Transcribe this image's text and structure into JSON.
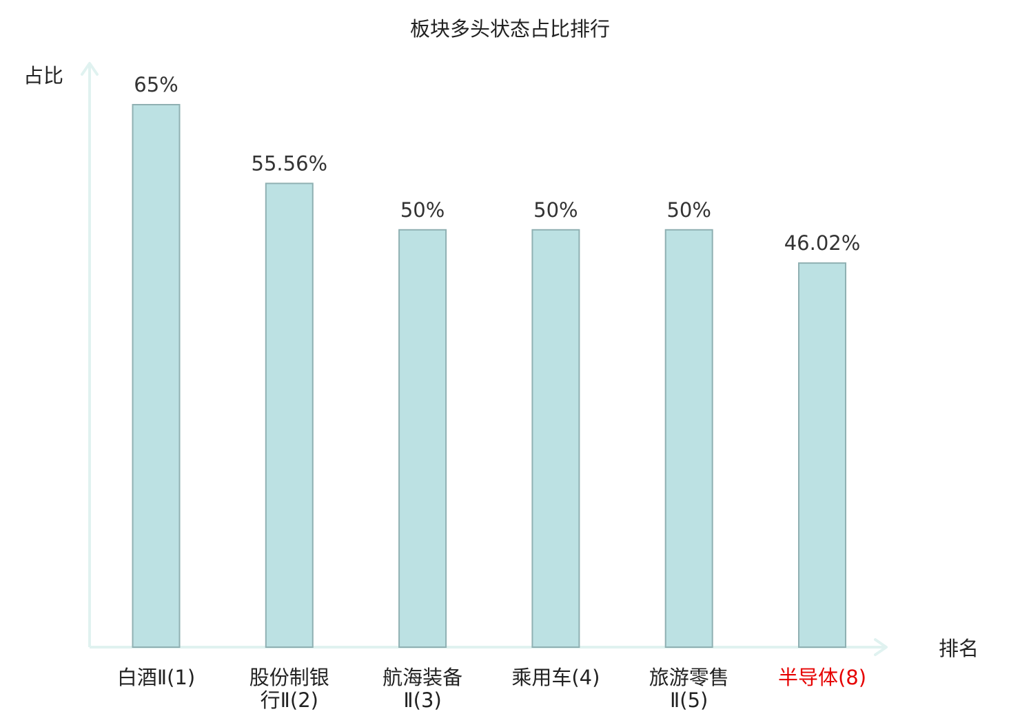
{
  "chart_data": {
    "type": "bar",
    "title": "板块多头状态占比排行",
    "xlabel": "排名",
    "ylabel": "占比",
    "categories": [
      [
        "白酒Ⅱ(1)"
      ],
      [
        "股份制银",
        "行Ⅱ(2)"
      ],
      [
        "航海装备",
        "Ⅱ(3)"
      ],
      [
        "乘用车(4)"
      ],
      [
        "旅游零售",
        "Ⅱ(5)"
      ],
      [
        "半导体(8)"
      ]
    ],
    "values": [
      65,
      55.56,
      50,
      50,
      50,
      46.02
    ],
    "value_labels": [
      "65%",
      "55.56%",
      "50%",
      "50%",
      "50%",
      "46.02%"
    ],
    "highlight_index": 5,
    "ylim": [
      0,
      65
    ],
    "grid": false,
    "colors": {
      "bar_fill": "#bce1e3",
      "bar_stroke": "#8fb0b2",
      "axis": "#e0f2f0",
      "highlight_text": "#e60000",
      "text": "#222222"
    }
  }
}
